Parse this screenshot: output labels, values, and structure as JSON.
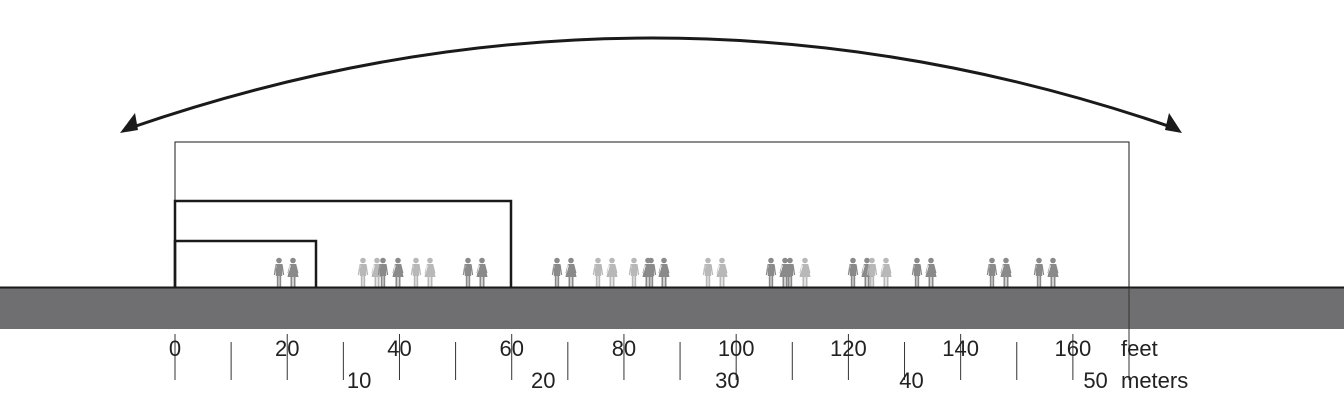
{
  "colors": {
    "ground": "#6f6f72",
    "outline": "#1a1a1a",
    "figure_dark": "#8a8a8a",
    "figure_light": "#b8b8b8",
    "tick": "#333333"
  },
  "icons": {
    "arrow": "double-headed-arc-arrow-icon",
    "person": "person-pair-icon"
  },
  "scale": {
    "feet_label": "feet",
    "meters_label": "meters",
    "feet_ticks": [
      "0",
      "20",
      "40",
      "60",
      "80",
      "100",
      "120",
      "140",
      "160"
    ],
    "meters_ticks": [
      "10",
      "20",
      "30",
      "40",
      "50"
    ]
  }
}
